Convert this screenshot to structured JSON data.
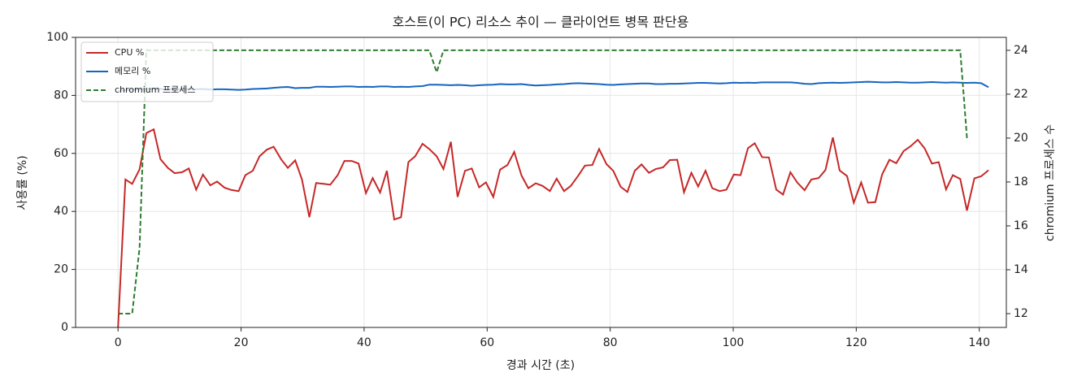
{
  "chart_data": {
    "type": "line",
    "title": "호스트(이 PC) 리소스 추이 — 클라이언트 병목 판단용",
    "x_label": "경과 시간 (초)",
    "y_label": "사용률 (%)",
    "y2_label": "chromium 프로세스 수",
    "x": [
      0,
      1.2,
      2.3,
      3.5,
      4.6,
      5.8,
      6.9,
      8.1,
      9.2,
      10.4,
      11.5,
      12.7,
      13.8,
      15,
      16.1,
      17.3,
      18.4,
      19.6,
      20.7,
      21.9,
      23,
      24.2,
      25.3,
      26.5,
      27.6,
      28.8,
      29.9,
      31.1,
      32.2,
      33.4,
      34.5,
      35.7,
      36.8,
      38,
      39.1,
      40.3,
      41.4,
      42.6,
      43.7,
      44.9,
      46,
      47.2,
      48.3,
      49.5,
      50.6,
      51.8,
      52.9,
      54.1,
      55.2,
      56.4,
      57.5,
      58.7,
      59.8,
      61,
      62.1,
      63.3,
      64.4,
      65.6,
      66.7,
      67.9,
      69,
      70.2,
      71.3,
      72.5,
      73.6,
      74.8,
      75.9,
      77.1,
      78.2,
      79.4,
      80.5,
      81.7,
      82.8,
      84,
      85.1,
      86.3,
      87.4,
      88.6,
      89.7,
      90.9,
      92,
      93.2,
      94.3,
      95.5,
      96.6,
      97.8,
      98.9,
      100.1,
      101.2,
      102.4,
      103.5,
      104.7,
      105.8,
      107,
      108.1,
      109.3,
      110.4,
      111.6,
      112.7,
      113.9,
      115,
      116.2,
      117.3,
      118.5,
      119.6,
      120.8,
      121.9,
      123.1,
      124.2,
      125.4,
      126.5,
      127.7,
      128.8,
      130,
      131.1,
      132.3,
      133.4,
      134.6,
      135.7,
      136.9,
      138,
      139.2,
      140.3,
      141.5
    ],
    "series": [
      {
        "name": "CPU %",
        "color": "#c62828",
        "values": [
          0,
          51,
          49.5,
          54.5,
          67,
          68.3,
          58,
          55,
          53.2,
          53.5,
          54.8,
          47.5,
          52.7,
          49,
          50.3,
          48.2,
          47.4,
          47,
          52.5,
          54,
          59,
          61.3,
          62.3,
          58,
          55,
          57.6,
          51,
          38,
          49.8,
          49.5,
          49.2,
          52.5,
          57.4,
          57.4,
          56.5,
          46.3,
          51.5,
          46.5,
          54,
          37.2,
          38,
          57,
          59,
          63.3,
          61.5,
          59,
          54.6,
          64,
          45,
          54,
          54.8,
          48.3,
          50,
          45,
          54.4,
          56,
          60.5,
          52.3,
          48,
          49.7,
          48.8,
          47,
          51.3,
          47,
          48.8,
          52.3,
          55.8,
          56,
          61.5,
          56.3,
          54,
          48.5,
          46.7,
          54,
          56.2,
          53.3,
          54.6,
          55.2,
          57.7,
          57.8,
          46.6,
          53.3,
          48.6,
          54,
          48,
          47,
          47.5,
          52.7,
          52.5,
          61.8,
          63.5,
          58.7,
          58.6,
          47.5,
          45.8,
          53.5,
          50,
          47.3,
          51,
          51.5,
          54.3,
          65.5,
          54.1,
          52.2,
          43,
          50,
          43,
          43.2,
          52.7,
          57.8,
          56.6,
          60.8,
          62.4,
          64.7,
          61.8,
          56.5,
          57,
          47.6,
          52.5,
          51.2,
          40.3,
          51.4,
          52.1,
          54.2
        ]
      },
      {
        "name": "메모리 %",
        "color": "#1565c0",
        "values": [
          81.5,
          81.8,
          82,
          82.1,
          82.2,
          82.3,
          82.2,
          82.1,
          82.2,
          82.1,
          82.2,
          82.1,
          82.2,
          82,
          82.1,
          82.1,
          82,
          81.9,
          82,
          82.2,
          82.3,
          82.4,
          82.6,
          82.8,
          82.9,
          82.5,
          82.6,
          82.6,
          83,
          83,
          82.9,
          83,
          83.1,
          83.1,
          82.9,
          83,
          82.9,
          83.1,
          83.1,
          82.9,
          83,
          82.9,
          83.1,
          83.2,
          83.7,
          83.7,
          83.6,
          83.5,
          83.6,
          83.5,
          83.3,
          83.5,
          83.6,
          83.7,
          83.9,
          83.8,
          83.8,
          83.9,
          83.6,
          83.4,
          83.5,
          83.6,
          83.8,
          83.9,
          84.1,
          84.2,
          84.1,
          84,
          83.9,
          83.7,
          83.6,
          83.8,
          83.9,
          84,
          84.1,
          84.1,
          83.9,
          83.9,
          84,
          84,
          84.1,
          84.2,
          84.3,
          84.3,
          84.2,
          84.1,
          84.2,
          84.4,
          84.3,
          84.4,
          84.3,
          84.5,
          84.5,
          84.5,
          84.5,
          84.5,
          84.3,
          84,
          83.9,
          84.2,
          84.3,
          84.4,
          84.3,
          84.4,
          84.5,
          84.6,
          84.7,
          84.6,
          84.5,
          84.5,
          84.6,
          84.5,
          84.4,
          84.4,
          84.5,
          84.6,
          84.5,
          84.4,
          84.5,
          84.4,
          84.3,
          84.4,
          84.2,
          82.8
        ]
      },
      {
        "name": "chromium 프로세스",
        "color": "#2e7d32",
        "dashed": true,
        "axis": "y2",
        "values": [
          12,
          12,
          12,
          15,
          24,
          24,
          24,
          24,
          24,
          24,
          24,
          24,
          24,
          24,
          24,
          24,
          24,
          24,
          24,
          24,
          24,
          24,
          24,
          24,
          24,
          24,
          24,
          24,
          24,
          24,
          24,
          24,
          24,
          24,
          24,
          24,
          24,
          24,
          24,
          24,
          24,
          24,
          24,
          24,
          24,
          23,
          24,
          24,
          24,
          24,
          24,
          24,
          24,
          24,
          24,
          24,
          24,
          24,
          24,
          24,
          24,
          24,
          24,
          24,
          24,
          24,
          24,
          24,
          24,
          24,
          24,
          24,
          24,
          24,
          24,
          24,
          24,
          24,
          24,
          24,
          24,
          24,
          24,
          24,
          24,
          24,
          24,
          24,
          24,
          24,
          24,
          24,
          24,
          24,
          24,
          24,
          24,
          24,
          24,
          24,
          24,
          24,
          24,
          24,
          24,
          24,
          24,
          24,
          24,
          24,
          24,
          24,
          24,
          24,
          24,
          24,
          24,
          24,
          24,
          24,
          20,
          null,
          null,
          null
        ]
      }
    ],
    "xlim": [
      -6.9,
      144.4
    ],
    "xticks": [
      0,
      20,
      40,
      60,
      80,
      100,
      120,
      140
    ],
    "ylim": [
      0,
      100
    ],
    "yticks": [
      0,
      20,
      40,
      60,
      80,
      100
    ],
    "y2lim": [
      11.37,
      24.59
    ],
    "y2ticks": [
      12,
      14,
      16,
      18,
      20,
      22,
      24
    ],
    "grid": true,
    "legend": "upper left"
  }
}
